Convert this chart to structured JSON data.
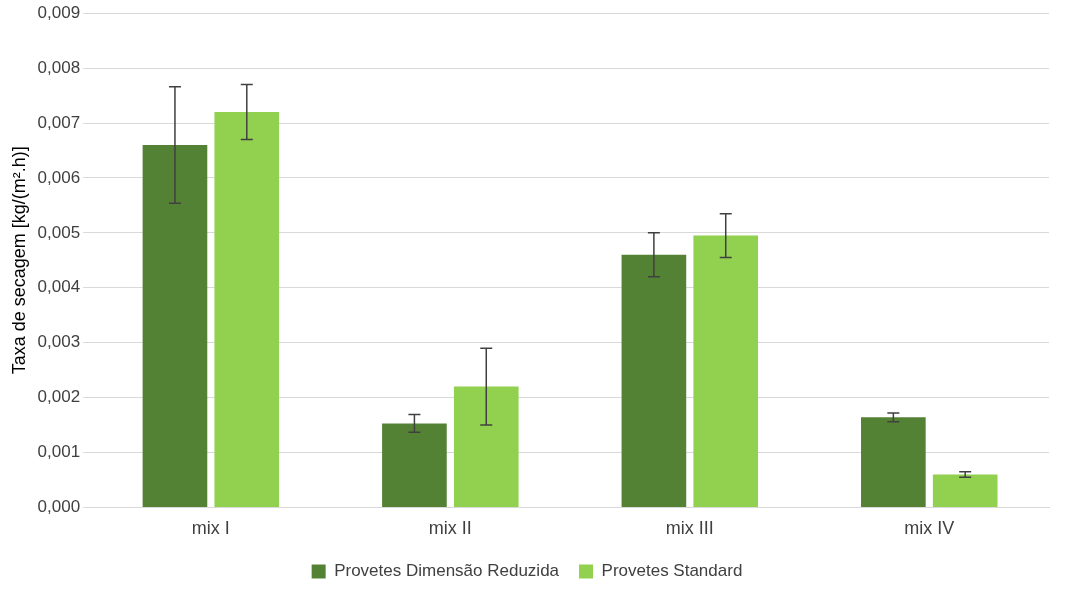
{
  "chart_data": {
    "type": "bar",
    "ylabel": "Taxa de secagem [kg/(m².h)]",
    "categories": [
      "mix I",
      "mix II",
      "mix III",
      "mix IV"
    ],
    "series": [
      {
        "name": "Provetes Dimensão Reduzida",
        "color": "#548235",
        "values": [
          0.0066,
          0.00153,
          0.0046,
          0.00164
        ],
        "errors": [
          0.00106,
          0.00016,
          0.0004,
          8e-05
        ]
      },
      {
        "name": "Provetes Standard",
        "color": "#92d050",
        "values": [
          0.0072,
          0.0022,
          0.00495,
          0.0006
        ],
        "errors": [
          0.0005,
          0.0007,
          0.0004,
          5e-05
        ]
      }
    ],
    "ylim": [
      0,
      0.009
    ],
    "yticks": [
      {
        "value": 0,
        "label": "0,000"
      },
      {
        "value": 0.001,
        "label": "0,001"
      },
      {
        "value": 0.002,
        "label": "0,002"
      },
      {
        "value": 0.003,
        "label": "0,003"
      },
      {
        "value": 0.004,
        "label": "0,004"
      },
      {
        "value": 0.005,
        "label": "0,005"
      },
      {
        "value": 0.006,
        "label": "0,006"
      },
      {
        "value": 0.007,
        "label": "0,007"
      },
      {
        "value": 0.008,
        "label": "0,008"
      },
      {
        "value": 0.009,
        "label": "0,009"
      }
    ],
    "grid": "y",
    "legend": "bottom"
  }
}
